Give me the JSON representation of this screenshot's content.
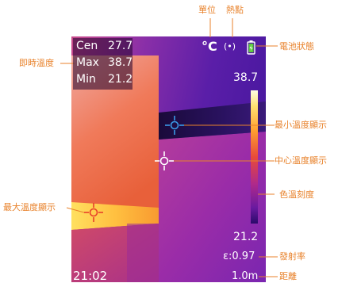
{
  "colors": {
    "callout": "#e8822b",
    "readout": "#ffffff",
    "scale_top": "#fff8d8",
    "scale_bottom": "#2a0a6a"
  },
  "display": {
    "stats": [
      {
        "key": "Cen",
        "value": "27.7"
      },
      {
        "key": "Max",
        "value": "38.7"
      },
      {
        "key": "Min",
        "value": "21.2"
      }
    ],
    "unit_symbol": "°C",
    "hotspot_symbol": "(•)",
    "scale_max": "38.7",
    "scale_min": "21.2",
    "emissivity": "ε:0.97",
    "distance": "1.0m",
    "time": "21:02"
  },
  "callouts": {
    "unit": "單位",
    "hotspot": "熱點",
    "battery": "電池狀態",
    "realtime_temp": "即時溫度",
    "min_temp": "最小溫度顯示",
    "center_temp": "中心溫度顯示",
    "color_scale": "色溫刻度",
    "max_temp": "最大溫度顯示",
    "emissivity": "發射率",
    "distance": "距離"
  },
  "icons": {
    "battery": "battery-charging-icon",
    "crosshair": "crosshair-icon",
    "hotspot": "hotspot-signal-icon"
  }
}
